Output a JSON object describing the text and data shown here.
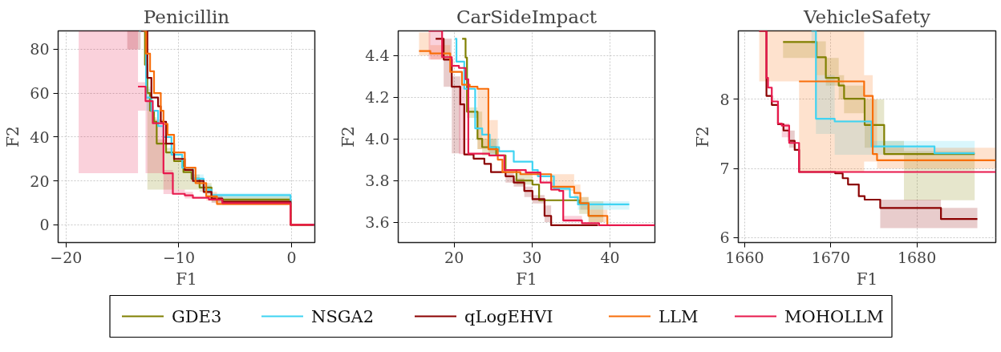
{
  "chart_data": [
    {
      "type": "step",
      "title": "Penicillin",
      "xlabel": "F1",
      "ylabel": "F2",
      "xlim": [
        -20.7,
        2.06
      ],
      "ylim": [
        -8.1,
        88.4
      ],
      "xticks": [
        {
          "value": -20,
          "label": "−20"
        },
        {
          "value": -10,
          "label": "−10"
        },
        0
      ],
      "yticks": [
        0,
        20,
        40,
        60,
        80
      ],
      "grid": true,
      "legend": "bottom",
      "series": [
        {
          "name": "GDE3",
          "color": "#808000",
          "x": [
            -13.26,
            -13.0,
            -12.79,
            -12.55,
            -12.2,
            -11.96,
            -11.13,
            -10.42,
            -9.59,
            -8.87,
            -8.16,
            -7.1,
            -0.09,
            2.0
          ],
          "values": [
            88.4,
            73,
            60,
            52,
            47,
            37,
            33,
            29,
            24,
            21,
            17,
            11.5,
            0,
            0
          ],
          "lower": [
            null,
            null,
            16,
            16,
            16,
            16,
            16,
            16,
            16,
            16,
            15,
            10.5,
            10.5,
            null
          ],
          "upper": [
            null,
            null,
            62,
            54,
            49,
            39,
            35,
            31,
            26,
            23,
            19,
            13,
            13,
            null
          ]
        },
        {
          "name": "NSGA2",
          "color": "#3fd3f2",
          "x": [
            -13.5,
            -12.9,
            -12.43,
            -11.84,
            -11.36,
            -10.65,
            -9.7,
            -8.75,
            -7.8,
            -7.1,
            -0.09,
            2.0
          ],
          "values": [
            88.4,
            58,
            52,
            45,
            40,
            32,
            26,
            21,
            16,
            13.5,
            0,
            0
          ],
          "lower": [
            null,
            52,
            52,
            null,
            null,
            null,
            null,
            19,
            14,
            11.5,
            11.5,
            null
          ],
          "upper": [
            null,
            63,
            63,
            null,
            null,
            null,
            null,
            23,
            18,
            14.5,
            14.5,
            null
          ]
        },
        {
          "name": "qLogEHVI",
          "color": "#8b0000",
          "x": [
            -14.57,
            -13.38,
            -12.79,
            -12.43,
            -11.84,
            -11.6,
            -11.13,
            -10.42,
            -9.47,
            -8.75,
            -7.8,
            -7.1,
            -6.14,
            -0.09,
            2.0
          ],
          "values": [
            null,
            88.4,
            67,
            58,
            54,
            47,
            37,
            30,
            25,
            20,
            15,
            12,
            10.5,
            0,
            0
          ],
          "lower": [
            80,
            80,
            null,
            null,
            null,
            null,
            null,
            null,
            null,
            null,
            null,
            10,
            9,
            9,
            null
          ],
          "upper": [
            88.4,
            88.4,
            null,
            null,
            null,
            null,
            null,
            null,
            null,
            null,
            null,
            13,
            11.5,
            11.5,
            null
          ]
        },
        {
          "name": "LLM",
          "color": "#f86e0a",
          "x": [
            -13.14,
            -12.9,
            -12.55,
            -12.2,
            -11.6,
            -11.36,
            -11.0,
            -10.42,
            -9.47,
            -8.52,
            -7.57,
            -6.62,
            -0.09,
            1.64
          ],
          "values": [
            88.4,
            78,
            70,
            60,
            52,
            46,
            41,
            33,
            26,
            19,
            13,
            9.5,
            0,
            0
          ],
          "lower": [
            null,
            null,
            null,
            null,
            null,
            null,
            null,
            null,
            null,
            null,
            11,
            9,
            9,
            null
          ],
          "upper": [
            null,
            null,
            null,
            null,
            null,
            null,
            null,
            null,
            null,
            null,
            15,
            11,
            11,
            null
          ]
        },
        {
          "name": "MOHOLLM",
          "color": "#e8194d",
          "x": [
            -18.88,
            -13.62,
            -12.95,
            -12.31,
            -11.36,
            -10.53,
            -9.47,
            -8.75,
            -7.33,
            -6.14,
            -0.09,
            2.0
          ],
          "values": [
            null,
            63,
            56.4,
            46.3,
            23.5,
            14.1,
            13.4,
            12.3,
            11.5,
            9.9,
            0,
            0
          ],
          "lower": [
            23.5,
            52,
            23.5,
            23.5,
            14,
            14,
            12,
            12,
            null,
            null,
            null,
            null
          ],
          "upper": [
            88.4,
            65,
            58,
            48,
            25,
            16,
            15,
            15,
            null,
            null,
            null,
            null
          ]
        }
      ]
    },
    {
      "type": "step",
      "title": "CarSideImpact",
      "xlabel": "F1",
      "ylabel": "F2",
      "xlim": [
        12.83,
        45.76
      ],
      "ylim": [
        3.502,
        4.518
      ],
      "xticks": [
        20,
        30,
        40
      ],
      "yticks": [
        {
          "value": 3.6,
          "label": "3.6"
        },
        {
          "value": 3.8,
          "label": "3.8"
        },
        {
          "value": 4.0,
          "label": "4.0"
        },
        {
          "value": 4.2,
          "label": "4.2"
        },
        {
          "value": 4.4,
          "label": "4.4"
        }
      ],
      "grid": true,
      "series": [
        {
          "color": "#808000",
          "x": [
            21.03,
            21.47,
            21.65,
            23.0,
            23.6,
            25.4,
            26.6,
            28.0,
            30.05,
            30.9,
            36.05,
            37.25,
            39.14
          ],
          "values": [
            4.48,
            4.39,
            4.13,
            4.0,
            3.96,
            3.92,
            3.85,
            3.8,
            3.78,
            3.705,
            3.69,
            3.63,
            3.63
          ],
          "lower": [
            null,
            null,
            4.1,
            3.95,
            3.92,
            3.92,
            null,
            3.78,
            3.78,
            null,
            3.64,
            3.6,
            3.6
          ],
          "upper": [
            null,
            null,
            4.15,
            4.13,
            4.0,
            4.0,
            null,
            3.84,
            3.84,
            null,
            3.72,
            3.7,
            3.7
          ]
        },
        {
          "color": "#3fd3f2",
          "x": [
            20.1,
            20.3,
            21.3,
            22.7,
            23.6,
            24.56,
            25.76,
            27.65,
            30.05,
            30.74,
            32.8,
            34.85,
            35.88,
            42.47
          ],
          "values": [
            4.48,
            4.37,
            4.24,
            4.05,
            4.02,
            3.96,
            3.94,
            3.89,
            3.85,
            3.82,
            3.76,
            3.72,
            3.685,
            3.685
          ],
          "lower": [
            null,
            null,
            null,
            null,
            null,
            3.92,
            3.92,
            null,
            null,
            null,
            null,
            null,
            3.66,
            3.66
          ],
          "upper": [
            null,
            null,
            null,
            null,
            null,
            4.0,
            4.0,
            null,
            null,
            null,
            null,
            null,
            3.7,
            3.7
          ]
        },
        {
          "color": "#8b0000",
          "x": [
            17.63,
            18.66,
            19.7,
            20.79,
            21.3,
            22.5,
            23.88,
            24.73,
            26.6,
            27.65,
            29.0,
            30.05,
            31.6,
            32.45,
            38.45
          ],
          "values": [
            4.48,
            4.38,
            4.25,
            4.165,
            3.925,
            3.905,
            3.88,
            3.84,
            3.82,
            3.79,
            3.75,
            3.71,
            3.63,
            3.585,
            3.585
          ],
          "lower": [
            null,
            4.25,
            3.93,
            3.93,
            null,
            null,
            null,
            null,
            3.79,
            3.77,
            3.72,
            3.69,
            3.6,
            3.6,
            null
          ],
          "upper": [
            null,
            4.48,
            4.3,
            4.3,
            null,
            null,
            null,
            null,
            3.84,
            3.81,
            3.77,
            3.73,
            3.68,
            3.68,
            null
          ]
        },
        {
          "color": "#f86e0a",
          "x": [
            15.5,
            16.95,
            19.5,
            21.0,
            22.0,
            23.0,
            24.4,
            25.6,
            26.2,
            28.5,
            32.45,
            35.4,
            36.2,
            37.25,
            39.66
          ],
          "values": [
            4.421,
            4.41,
            4.321,
            4.26,
            4.25,
            4.24,
            3.95,
            3.9,
            3.84,
            3.83,
            3.77,
            3.74,
            3.69,
            3.63,
            3.585
          ],
          "lower": [
            4.4,
            4.38,
            4.38,
            null,
            null,
            3.95,
            3.93,
            3.93,
            null,
            null,
            3.75,
            3.71,
            3.66,
            3.6,
            3.6
          ],
          "upper": [
            4.51,
            4.45,
            4.45,
            null,
            null,
            4.24,
            4.09,
            4.09,
            null,
            null,
            3.83,
            3.78,
            3.72,
            3.66,
            3.66
          ]
        },
        {
          "color": "#e8194d",
          "x": [
            16.74,
            18.46,
            19.7,
            20.62,
            21.47,
            21.82,
            24.5,
            26.45,
            29.2,
            31.08,
            32.45,
            33.48,
            34.0,
            36.4,
            38.6,
            45.76
          ],
          "values": [
            4.518,
            4.392,
            4.35,
            4.34,
            4.286,
            3.929,
            3.92,
            3.85,
            3.838,
            3.79,
            3.756,
            3.75,
            3.608,
            3.595,
            3.585,
            3.585
          ],
          "lower": [
            4.38,
            4.38,
            null,
            3.926,
            3.926,
            null,
            null,
            null,
            null,
            null,
            null,
            null,
            3.6,
            3.6,
            null,
            null
          ],
          "upper": [
            4.518,
            4.518,
            null,
            4.256,
            4.256,
            null,
            null,
            null,
            null,
            null,
            null,
            null,
            3.63,
            3.63,
            null,
            null
          ]
        }
      ]
    },
    {
      "type": "step",
      "title": "VehicleSafety",
      "xlabel": "F1",
      "ylabel": "F2",
      "xlim": [
        1659.25,
        1689.17
      ],
      "ylim": [
        5.93,
        8.99
      ],
      "xticks": [
        1660,
        1670,
        1680
      ],
      "yticks": [
        6,
        7,
        8
      ],
      "grid": true,
      "series": [
        {
          "color": "#808000",
          "x": [
            1664.45,
            1668.34,
            1669.42,
            1670.92,
            1671.54,
            1673.93,
            1676.2,
            1678.5,
            1686.72
          ],
          "values": [
            8.83,
            8.61,
            8.31,
            8.2,
            8.01,
            7.63,
            7.21,
            7.21,
            7.21
          ],
          "lower": [
            8.6,
            8.35,
            8.2,
            8.0,
            7.8,
            7.3,
            7.2,
            6.54,
            6.54
          ],
          "upper": [
            8.84,
            8.84,
            8.6,
            8.35,
            8.2,
            8.0,
            7.4,
            7.25,
            7.25
          ]
        },
        {
          "color": "#3fd3f2",
          "x": [
            1667.75,
            1668.27,
            1670.45,
            1674.74,
            1682.05,
            1686.72
          ],
          "values": [
            8.99,
            7.72,
            7.68,
            7.32,
            7.22,
            7.22
          ],
          "lower": [
            8.8,
            7.5,
            7.2,
            7.2,
            7.2,
            7.2
          ],
          "upper": [
            8.99,
            8.35,
            7.7,
            7.4,
            7.4,
            7.4
          ]
        },
        {
          "color": "#8b0000",
          "x": [
            1661.68,
            1662.52,
            1663.14,
            1663.86,
            1664.5,
            1665.16,
            1665.8,
            1666.31,
            1670.51,
            1671.38,
            1672.0,
            1673.25,
            1673.93,
            1675.74,
            1682.8,
            1687.03
          ],
          "values": [
            8.99,
            8.05,
            7.92,
            7.64,
            7.55,
            7.4,
            7.27,
            6.95,
            6.93,
            6.86,
            6.77,
            6.6,
            6.55,
            6.43,
            6.27,
            6.27
          ],
          "lower": [
            null,
            null,
            null,
            null,
            null,
            7.3,
            7.3,
            null,
            null,
            null,
            null,
            null,
            null,
            6.14,
            6.14,
            6.14
          ],
          "upper": [
            null,
            null,
            null,
            null,
            null,
            7.55,
            7.55,
            null,
            null,
            null,
            null,
            null,
            null,
            6.55,
            6.43,
            6.43
          ]
        },
        {
          "color": "#f86e0a",
          "x": [
            1661.68,
            1666.31,
            1673.87,
            1674.87,
            1675.37,
            1689.17
          ],
          "values": [
            null,
            8.26,
            8.05,
            7.21,
            7.12,
            7.12
          ],
          "lower": [
            8.26,
            6.95,
            7.1,
            7.1,
            7.0,
            7.0
          ],
          "upper": [
            8.99,
            8.99,
            8.35,
            8.0,
            7.3,
            7.3
          ]
        },
        {
          "color": "#e8194d",
          "x": [
            1661.68,
            1662.52,
            1662.7,
            1663.14,
            1663.86,
            1664.3,
            1665.16,
            1666.31,
            1689.17
          ],
          "values": [
            8.99,
            8.31,
            8.17,
            7.97,
            7.65,
            7.62,
            7.37,
            6.95,
            6.95
          ],
          "lower": [
            null,
            null,
            null,
            null,
            null,
            7.45,
            7.45,
            null,
            null
          ],
          "upper": [
            null,
            null,
            null,
            null,
            null,
            7.65,
            7.65,
            null,
            null
          ]
        }
      ]
    }
  ]
}
